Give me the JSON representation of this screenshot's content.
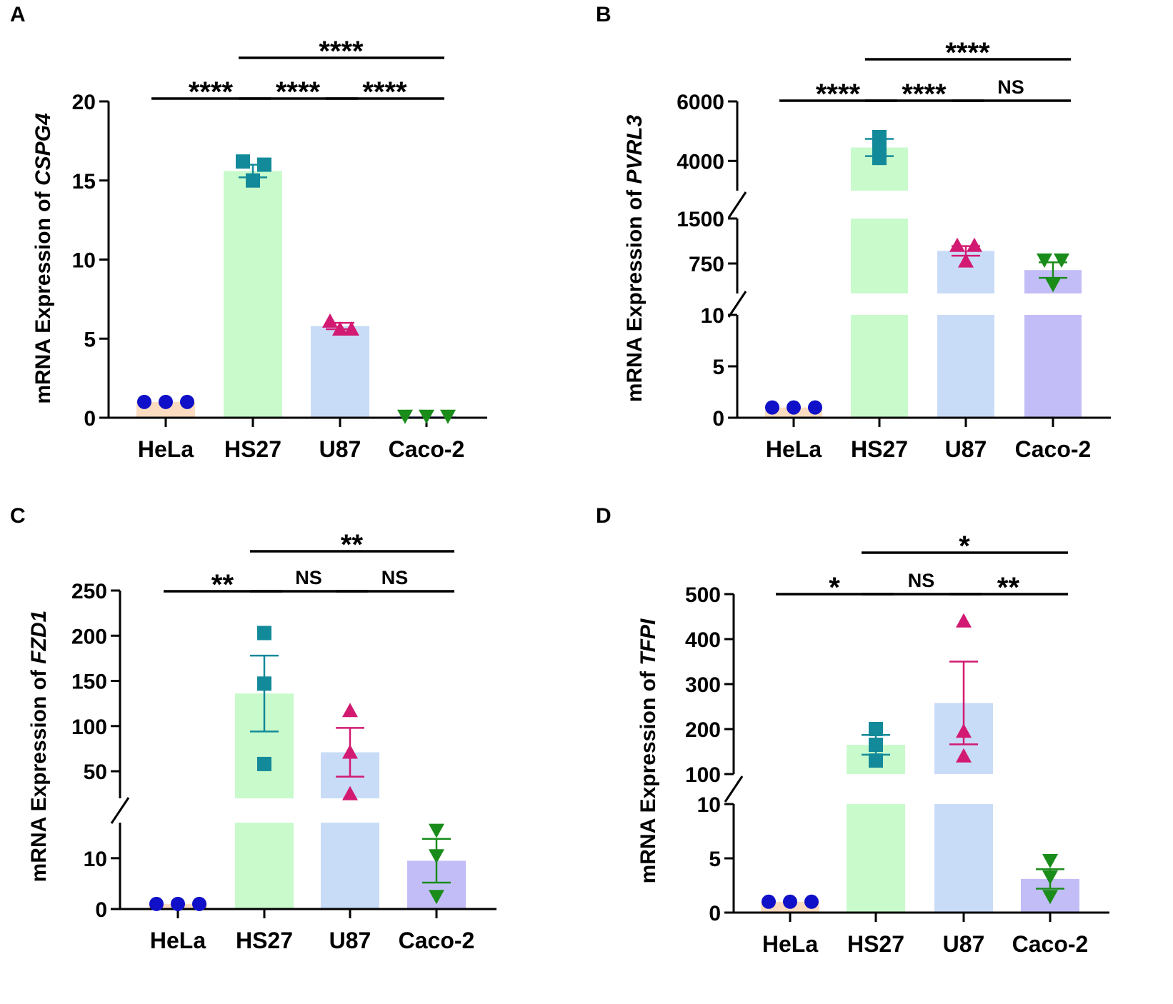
{
  "colors": {
    "HeLa": "#fbdcc0",
    "HS27": "#c9facc",
    "U87": "#c9dcf7",
    "Caco-2": "#c2bdf6",
    "marker_HeLa": "#1010c8",
    "marker_HS27": "#138a9a",
    "marker_U87": "#d21a72",
    "marker_Caco-2": "#1a8c1a"
  },
  "chart_data": [
    {
      "panel": "A",
      "type": "bar",
      "ylabel_prefix": "mRNA Expression of ",
      "ylabel_gene": "CSPG4",
      "categories": [
        "HeLa",
        "HS27",
        "U87",
        "Caco-2"
      ],
      "markers": [
        "circle",
        "square",
        "triangle-up",
        "triangle-down"
      ],
      "values": [
        1.0,
        15.6,
        5.8,
        0.1
      ],
      "points": [
        [
          1.0,
          1.0,
          1.0
        ],
        [
          16.2,
          15.0,
          16.0
        ],
        [
          6.1,
          5.6,
          5.6
        ],
        [
          0.1,
          0.1,
          0.1
        ]
      ],
      "sem": [
        0.0,
        0.4,
        0.2,
        0.0
      ],
      "y_segments": [
        {
          "range": [
            0,
            20
          ],
          "ticks": [
            0,
            5,
            10,
            15,
            20
          ],
          "tick_labels": [
            "0",
            "5",
            "10",
            "15",
            "20"
          ]
        }
      ],
      "significance": [
        {
          "from": 0,
          "to": 1,
          "label": "****",
          "level": 0
        },
        {
          "from": 1,
          "to": 2,
          "label": "****",
          "level": 0
        },
        {
          "from": 2,
          "to": 3,
          "label": "****",
          "level": 0
        },
        {
          "from": 1,
          "to": 3,
          "label": "****",
          "level": 1
        }
      ]
    },
    {
      "panel": "B",
      "type": "bar",
      "ylabel_prefix": "mRNA Expression of ",
      "ylabel_gene": "PVRL3",
      "categories": [
        "HeLa",
        "HS27",
        "U87",
        "Caco-2"
      ],
      "markers": [
        "circle",
        "square",
        "triangle-up",
        "triangle-down"
      ],
      "values": [
        1.0,
        4450,
        960,
        640
      ],
      "points": [
        [
          1.0,
          1.0,
          1.0
        ],
        [
          4800,
          4450,
          4100
        ],
        [
          1050,
          1050,
          790
        ],
        [
          810,
          810,
          400
        ]
      ],
      "sem": [
        0.0,
        290,
        80,
        130
      ],
      "y_segments": [
        {
          "range": [
            0,
            10
          ],
          "ticks": [
            0,
            5,
            10
          ],
          "tick_labels": [
            "0",
            "5",
            "10"
          ]
        },
        {
          "range": [
            250,
            1500
          ],
          "ticks": [
            750,
            1500
          ],
          "tick_labels": [
            "750",
            "1500"
          ]
        },
        {
          "range": [
            3000,
            6000
          ],
          "ticks": [
            4000,
            6000
          ],
          "tick_labels": [
            "4000",
            "6000"
          ]
        }
      ],
      "significance": [
        {
          "from": 0,
          "to": 1,
          "label": "****",
          "level": 0
        },
        {
          "from": 1,
          "to": 2,
          "label": "****",
          "level": 0
        },
        {
          "from": 2,
          "to": 3,
          "label": "NS",
          "level": 0
        },
        {
          "from": 1,
          "to": 3,
          "label": "****",
          "level": 1
        }
      ]
    },
    {
      "panel": "C",
      "type": "bar",
      "ylabel_prefix": "mRNA Expression of ",
      "ylabel_gene": "FZD1",
      "categories": [
        "HeLa",
        "HS27",
        "U87",
        "Caco-2"
      ],
      "markers": [
        "circle",
        "square",
        "triangle-up",
        "triangle-down"
      ],
      "values": [
        1.0,
        136,
        71,
        9.5
      ],
      "points": [
        [
          1.0,
          1.0,
          1.0
        ],
        [
          203,
          147,
          58
        ],
        [
          117,
          71,
          25
        ],
        [
          15.5,
          10.5,
          2.5
        ]
      ],
      "sem": [
        0.0,
        42,
        27,
        4.3
      ],
      "y_segments": [
        {
          "range": [
            0,
            17
          ],
          "ticks": [
            0,
            10
          ],
          "tick_labels": [
            "0",
            "10"
          ]
        },
        {
          "range": [
            20,
            250
          ],
          "ticks": [
            50,
            100,
            150,
            200,
            250
          ],
          "tick_labels": [
            "50",
            "100",
            "150",
            "200",
            "250"
          ]
        }
      ],
      "significance": [
        {
          "from": 0,
          "to": 1,
          "label": "**",
          "level": 0
        },
        {
          "from": 1,
          "to": 2,
          "label": "NS",
          "level": 0
        },
        {
          "from": 2,
          "to": 3,
          "label": "NS",
          "level": 0
        },
        {
          "from": 1,
          "to": 3,
          "label": "**",
          "level": 1
        }
      ]
    },
    {
      "panel": "D",
      "type": "bar",
      "ylabel_prefix": "mRNA Expression of ",
      "ylabel_gene": "TFPI",
      "categories": [
        "HeLa",
        "HS27",
        "U87",
        "Caco-2"
      ],
      "markers": [
        "circle",
        "square",
        "triangle-up",
        "triangle-down"
      ],
      "values": [
        1.0,
        165,
        258,
        3.1
      ],
      "points": [
        [
          1.0,
          1.0,
          1.0
        ],
        [
          200,
          165,
          130
        ],
        [
          440,
          195,
          140
        ],
        [
          4.8,
          3.3,
          1.5
        ]
      ],
      "sem": [
        0.0,
        22,
        92,
        0.9
      ],
      "y_segments": [
        {
          "range": [
            0,
            10
          ],
          "ticks": [
            0,
            5,
            10
          ],
          "tick_labels": [
            "0",
            "5",
            "10"
          ]
        },
        {
          "range": [
            100,
            500
          ],
          "ticks": [
            100,
            200,
            300,
            400,
            500
          ],
          "tick_labels": [
            "100",
            "200",
            "300",
            "400",
            "500"
          ]
        }
      ],
      "significance": [
        {
          "from": 0,
          "to": 1,
          "label": "*",
          "level": 0
        },
        {
          "from": 1,
          "to": 2,
          "label": "NS",
          "level": 0
        },
        {
          "from": 2,
          "to": 3,
          "label": "**",
          "level": 0
        },
        {
          "from": 1,
          "to": 3,
          "label": "*",
          "level": 1
        }
      ]
    }
  ]
}
